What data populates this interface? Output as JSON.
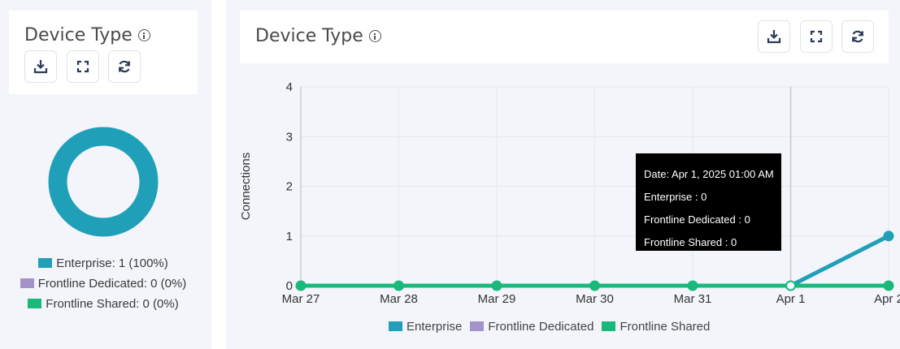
{
  "left_card": {
    "title": "Device Type",
    "legend": [
      {
        "label": "Enterprise: 1 (100%)",
        "color": "#20a0b8"
      },
      {
        "label": "Frontline Dedicated: 0 (0%)",
        "color": "#a493c8"
      },
      {
        "label": "Frontline Shared: 0 (0%)",
        "color": "#19b97c"
      }
    ]
  },
  "right_card": {
    "title": "Device Type"
  },
  "icons": {
    "info": "info-icon",
    "download": "download-icon",
    "fullscreen": "fullscreen-icon",
    "refresh": "refresh-icon"
  },
  "tooltip": {
    "date": "Date: Apr 1, 2025 01:00 AM",
    "enterprise": "Enterprise : 0",
    "frontline_dedicated": "Frontline Dedicated : 0",
    "frontline_shared": "Frontline Shared : 0"
  },
  "chart_data": [
    {
      "type": "pie",
      "categories": [
        "Enterprise",
        "Frontline Dedicated",
        "Frontline Shared"
      ],
      "values": [
        1,
        0,
        0
      ],
      "colors": [
        "#20a0b8",
        "#a493c8",
        "#19b97c"
      ]
    },
    {
      "type": "line",
      "title": "Device Type",
      "ylabel": "Connections",
      "xlabel": "",
      "categories": [
        "Mar 27",
        "Mar 28",
        "Mar 29",
        "Mar 30",
        "Mar 31",
        "Apr 1",
        "Apr 2"
      ],
      "ylim": [
        0,
        4
      ],
      "yticks": [
        0,
        1,
        2,
        3,
        4
      ],
      "grid": true,
      "legend_position": "bottom",
      "series": [
        {
          "name": "Enterprise",
          "color": "#20a0b8",
          "values": [
            0,
            0,
            0,
            0,
            0,
            0,
            1
          ]
        },
        {
          "name": "Frontline Dedicated",
          "color": "#a493c8",
          "values": [
            0,
            0,
            0,
            0,
            0,
            0,
            0
          ]
        },
        {
          "name": "Frontline Shared",
          "color": "#19b97c",
          "values": [
            0,
            0,
            0,
            0,
            0,
            0,
            0
          ]
        }
      ],
      "highlight_category": "Apr 1"
    }
  ]
}
